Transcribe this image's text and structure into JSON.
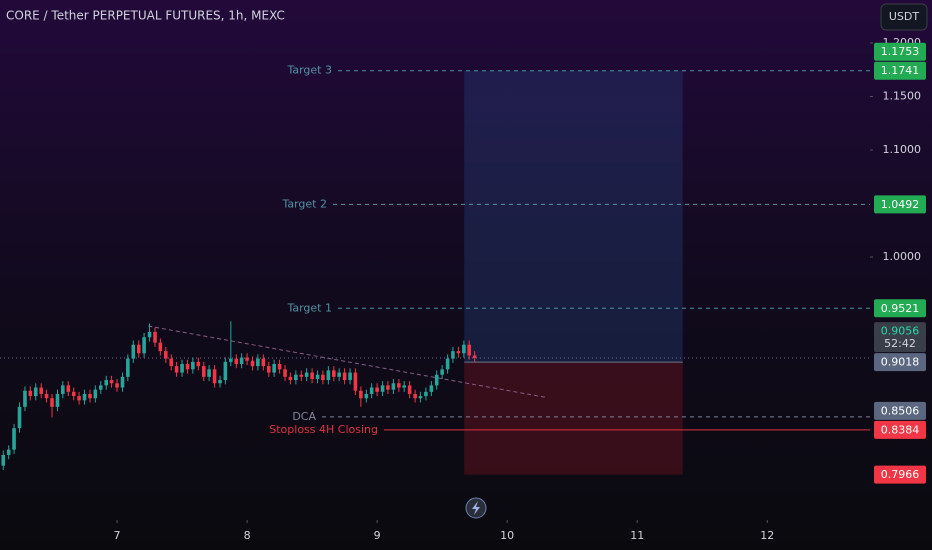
{
  "chart_data": {
    "type": "candlestick",
    "title": "CORE / Tether PERPETUAL FUTURES, 1h, MEXC",
    "currency": "USDT",
    "countdown": "52:42",
    "up_color": "#26a69a",
    "down_color": "#f23645",
    "xlim": [
      6.1,
      12.79
    ],
    "ylim": [
      0.7542,
      1.2402
    ],
    "xticks": [
      7,
      8,
      9,
      10,
      11,
      12
    ],
    "yticks": [
      {
        "value": 1.2,
        "label": "1.2000"
      },
      {
        "value": 1.15,
        "label": "1.1500"
      },
      {
        "value": 1.1,
        "label": "1.1000"
      },
      {
        "value": 1.0,
        "label": "1.0000"
      }
    ],
    "candles": {
      "x": [
        6.125,
        6.167,
        6.208,
        6.25,
        6.292,
        6.333,
        6.375,
        6.417,
        6.458,
        6.5,
        6.542,
        6.583,
        6.625,
        6.667,
        6.708,
        6.75,
        6.792,
        6.833,
        6.875,
        6.917,
        6.958,
        7,
        7.042,
        7.083,
        7.125,
        7.167,
        7.208,
        7.25,
        7.292,
        7.333,
        7.375,
        7.417,
        7.458,
        7.5,
        7.542,
        7.583,
        7.625,
        7.667,
        7.708,
        7.75,
        7.792,
        7.833,
        7.875,
        7.917,
        7.958,
        8,
        8.042,
        8.083,
        8.125,
        8.167,
        8.208,
        8.25,
        8.292,
        8.333,
        8.375,
        8.417,
        8.458,
        8.5,
        8.542,
        8.583,
        8.625,
        8.667,
        8.708,
        8.75,
        8.792,
        8.833,
        8.875,
        8.917,
        8.958,
        9,
        9.042,
        9.083,
        9.125,
        9.167,
        9.208,
        9.25,
        9.292,
        9.333,
        9.375,
        9.417,
        9.458,
        9.5,
        9.542,
        9.583,
        9.625,
        9.667,
        9.708,
        9.75
      ],
      "open": [
        0.805,
        0.815,
        0.82,
        0.84,
        0.86,
        0.875,
        0.87,
        0.878,
        0.872,
        0.868,
        0.86,
        0.872,
        0.88,
        0.874,
        0.87,
        0.866,
        0.872,
        0.868,
        0.876,
        0.88,
        0.885,
        0.882,
        0.878,
        0.888,
        0.905,
        0.918,
        0.91,
        0.925,
        0.93,
        0.92,
        0.912,
        0.905,
        0.898,
        0.892,
        0.9,
        0.895,
        0.902,
        0.898,
        0.888,
        0.895,
        0.882,
        0.885,
        0.902,
        0.905,
        0.9,
        0.906,
        0.903,
        0.898,
        0.905,
        0.898,
        0.892,
        0.9,
        0.895,
        0.888,
        0.885,
        0.89,
        0.888,
        0.892,
        0.886,
        0.89,
        0.885,
        0.894,
        0.888,
        0.892,
        0.885,
        0.892,
        0.875,
        0.868,
        0.872,
        0.878,
        0.874,
        0.88,
        0.876,
        0.882,
        0.878,
        0.88,
        0.872,
        0.868,
        0.87,
        0.874,
        0.88,
        0.89,
        0.895,
        0.905,
        0.912,
        0.91,
        0.918,
        0.908
      ],
      "high": [
        0.819,
        0.824,
        0.844,
        0.864,
        0.879,
        0.879,
        0.882,
        0.882,
        0.876,
        0.872,
        0.876,
        0.884,
        0.884,
        0.878,
        0.874,
        0.876,
        0.876,
        0.88,
        0.884,
        0.889,
        0.889,
        0.886,
        0.892,
        0.909,
        0.922,
        0.922,
        0.929,
        0.938,
        0.934,
        0.924,
        0.916,
        0.909,
        0.902,
        0.904,
        0.904,
        0.906,
        0.906,
        0.902,
        0.899,
        0.899,
        0.889,
        0.906,
        0.94,
        0.909,
        0.91,
        0.91,
        0.907,
        0.909,
        0.909,
        0.902,
        0.904,
        0.904,
        0.899,
        0.892,
        0.894,
        0.894,
        0.896,
        0.896,
        0.894,
        0.894,
        0.898,
        0.898,
        0.896,
        0.896,
        0.896,
        0.896,
        0.879,
        0.876,
        0.882,
        0.882,
        0.884,
        0.884,
        0.886,
        0.886,
        0.884,
        0.884,
        0.876,
        0.874,
        0.878,
        0.884,
        0.894,
        0.899,
        0.909,
        0.916,
        0.916,
        0.922,
        0.922,
        0.912
      ],
      "low": [
        0.801,
        0.811,
        0.816,
        0.836,
        0.856,
        0.866,
        0.866,
        0.868,
        0.864,
        0.85,
        0.856,
        0.868,
        0.87,
        0.866,
        0.862,
        0.862,
        0.864,
        0.864,
        0.872,
        0.876,
        0.878,
        0.874,
        0.874,
        0.884,
        0.901,
        0.906,
        0.906,
        0.921,
        0.916,
        0.908,
        0.901,
        0.894,
        0.888,
        0.888,
        0.891,
        0.891,
        0.894,
        0.884,
        0.884,
        0.878,
        0.878,
        0.881,
        0.898,
        0.896,
        0.896,
        0.899,
        0.894,
        0.894,
        0.894,
        0.888,
        0.888,
        0.891,
        0.884,
        0.881,
        0.881,
        0.884,
        0.884,
        0.882,
        0.882,
        0.881,
        0.881,
        0.884,
        0.884,
        0.881,
        0.881,
        0.871,
        0.86,
        0.864,
        0.868,
        0.87,
        0.87,
        0.872,
        0.872,
        0.874,
        0.874,
        0.868,
        0.864,
        0.864,
        0.866,
        0.87,
        0.876,
        0.886,
        0.891,
        0.901,
        0.906,
        0.906,
        0.904,
        0.902
      ],
      "close": [
        0.815,
        0.82,
        0.84,
        0.86,
        0.875,
        0.87,
        0.878,
        0.872,
        0.868,
        0.86,
        0.872,
        0.88,
        0.874,
        0.87,
        0.866,
        0.872,
        0.868,
        0.876,
        0.88,
        0.885,
        0.882,
        0.878,
        0.888,
        0.905,
        0.918,
        0.91,
        0.925,
        0.93,
        0.92,
        0.912,
        0.905,
        0.898,
        0.892,
        0.9,
        0.895,
        0.902,
        0.898,
        0.888,
        0.895,
        0.882,
        0.885,
        0.902,
        0.905,
        0.9,
        0.906,
        0.903,
        0.898,
        0.905,
        0.898,
        0.892,
        0.9,
        0.895,
        0.888,
        0.885,
        0.89,
        0.888,
        0.892,
        0.886,
        0.89,
        0.885,
        0.894,
        0.888,
        0.892,
        0.885,
        0.892,
        0.875,
        0.868,
        0.872,
        0.878,
        0.874,
        0.88,
        0.876,
        0.882,
        0.878,
        0.88,
        0.872,
        0.868,
        0.87,
        0.874,
        0.88,
        0.89,
        0.895,
        0.905,
        0.912,
        0.91,
        0.918,
        0.908,
        0.9056
      ]
    },
    "last_price": 0.9056,
    "trendline": {
      "x": [
        7.24,
        10.29
      ],
      "y": [
        0.9355,
        0.869
      ]
    },
    "position": {
      "x": [
        9.67,
        11.35
      ],
      "entry": 0.9018,
      "target": 1.1741,
      "stop": 0.7966
    },
    "levels": [
      {
        "label": "Target 3",
        "value": 1.1741,
        "color": "#4f93a3"
      },
      {
        "label": "Target 2",
        "value": 1.0492,
        "color": "#4f93a3"
      },
      {
        "label": "Target 1",
        "value": 0.9521,
        "color": "#4f93a3"
      },
      {
        "label": "DCA",
        "value": 0.8506,
        "color": "#7d8598"
      },
      {
        "label": "Stoploss 4H Closing",
        "value": 0.8384,
        "color": "#e0303f"
      }
    ],
    "price_labels": [
      {
        "value": 1.1753,
        "color": "#22ab53"
      },
      {
        "value": 1.1741,
        "color": "#22ab53"
      },
      {
        "value": 1.0492,
        "color": "#22ab53"
      },
      {
        "value": 0.9521,
        "color": "#22ab53"
      },
      {
        "value": 0.9056,
        "color": "#3a3e48"
      },
      {
        "value": 0.9018,
        "color": "#5b6780"
      },
      {
        "value": 0.8506,
        "color": "#5b6780"
      },
      {
        "value": 0.8384,
        "color": "#f23645"
      },
      {
        "value": 0.7966,
        "color": "#f23645"
      }
    ]
  }
}
